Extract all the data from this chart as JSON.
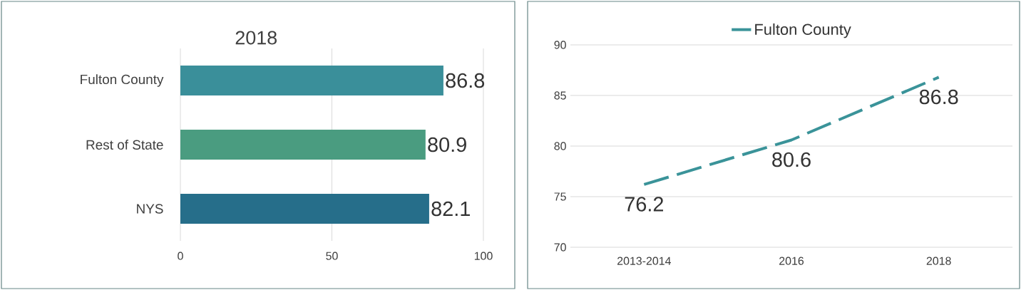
{
  "chart_data": [
    {
      "type": "bar",
      "orientation": "horizontal",
      "title": "2018",
      "categories": [
        "Fulton County",
        "Rest of State",
        "NYS"
      ],
      "values": [
        86.8,
        80.9,
        82.1
      ],
      "colors": [
        "#3a8f9a",
        "#4a9c80",
        "#266e8a"
      ],
      "xlim": [
        0,
        100
      ],
      "xticks": [
        0,
        50,
        100
      ],
      "grid": "x",
      "data_labels": true
    },
    {
      "type": "line",
      "categories": [
        "2013-2014",
        "2016",
        "2018"
      ],
      "series": [
        {
          "name": "Fulton County",
          "color": "#3a9399",
          "values": [
            76.2,
            80.6,
            86.8
          ]
        }
      ],
      "ylim": [
        70,
        90
      ],
      "yticks": [
        70,
        75,
        80,
        85,
        90
      ],
      "grid": "y",
      "legend": "top",
      "line_style": "dashed",
      "data_labels": true
    }
  ]
}
